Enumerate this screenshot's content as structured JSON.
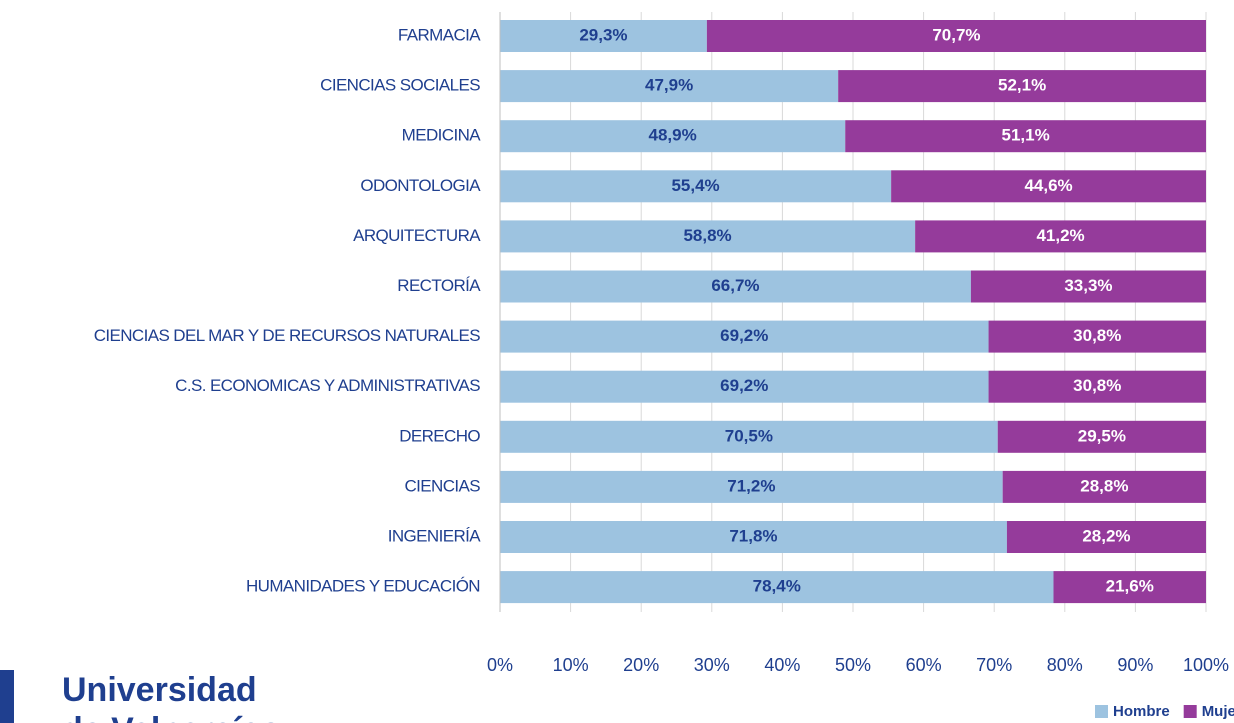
{
  "chart_data": {
    "type": "stacked_barh",
    "categories": [
      "FARMACIA",
      "CIENCIAS SOCIALES",
      "MEDICINA",
      "ODONTOLOGIA",
      "ARQUITECTURA",
      "RECTORÍA",
      "CIENCIAS DEL MAR Y DE RECURSOS NATURALES",
      "C.S. ECONOMICAS Y ADMINISTRATIVAS",
      "DERECHO",
      "CIENCIAS",
      "INGENIERÍA",
      "HUMANIDADES Y EDUCACIÓN"
    ],
    "series": [
      {
        "name": "Hombre",
        "color": "#9dc3e0",
        "values": [
          29.3,
          47.9,
          48.9,
          55.4,
          58.8,
          66.7,
          69.2,
          69.2,
          70.5,
          71.2,
          71.8,
          78.4
        ],
        "value_labels": [
          "29,3%",
          "47,9%",
          "48,9%",
          "55,4%",
          "58,8%",
          "66,7%",
          "69,2%",
          "69,2%",
          "70,5%",
          "71,2%",
          "71,8%",
          "78,4%"
        ]
      },
      {
        "name": "Mujer",
        "color": "#953b9b",
        "values": [
          70.7,
          52.1,
          51.1,
          44.6,
          41.2,
          33.3,
          30.8,
          30.8,
          29.5,
          28.8,
          28.2,
          21.6
        ],
        "value_labels": [
          "70,7%",
          "52,1%",
          "51,1%",
          "44,6%",
          "41,2%",
          "33,3%",
          "30,8%",
          "30,8%",
          "29,5%",
          "28,8%",
          "28,2%",
          "21,6%"
        ]
      }
    ],
    "xlim": [
      0,
      100
    ],
    "xticks": [
      {
        "value": 0,
        "label": "0%"
      },
      {
        "value": 10,
        "label": "10%"
      },
      {
        "value": 20,
        "label": "20%"
      },
      {
        "value": 30,
        "label": "30%"
      },
      {
        "value": 40,
        "label": "40%"
      },
      {
        "value": 50,
        "label": "50%"
      },
      {
        "value": 60,
        "label": "60%"
      },
      {
        "value": 70,
        "label": "70%"
      },
      {
        "value": 80,
        "label": "80%"
      },
      {
        "value": 90,
        "label": "90%"
      },
      {
        "value": 100,
        "label": "100%"
      }
    ],
    "grid": true,
    "legend": "bottom-right"
  },
  "logo": {
    "line1": "Universidad",
    "line2": "de Valparaíso"
  }
}
